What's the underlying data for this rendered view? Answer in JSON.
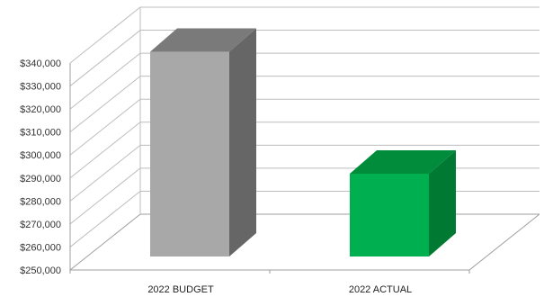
{
  "chart_data": {
    "type": "bar",
    "categories": [
      "2022 BUDGET",
      "2022 ACTUAL"
    ],
    "values": [
      339000,
      286000
    ],
    "ylim": [
      250000,
      340000
    ],
    "y_ticks": [
      "$250,000",
      "$260,000",
      "$270,000",
      "$280,000",
      "$290,000",
      "$300,000",
      "$310,000",
      "$320,000",
      "$330,000",
      "$340,000"
    ],
    "y_tick_values": [
      250000,
      260000,
      270000,
      280000,
      290000,
      300000,
      310000,
      320000,
      330000,
      340000
    ],
    "grid": true,
    "style": "3d",
    "colors": {
      "budget_front": "#a8a8a8",
      "budget_top": "#7a7a7a",
      "budget_side": "#666666",
      "actual_front": "#00b050",
      "actual_top": "#008c3a",
      "actual_side": "#007a33"
    }
  }
}
